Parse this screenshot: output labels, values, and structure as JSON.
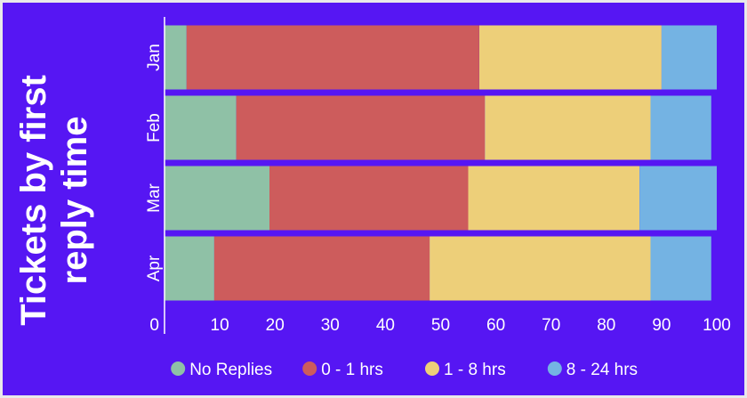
{
  "chart_data": {
    "type": "bar",
    "orientation": "horizontal",
    "stacked": true,
    "title_lines": [
      "Tickets by first",
      "reply time"
    ],
    "categories": [
      "Jan",
      "Feb",
      "Mar",
      "Apr"
    ],
    "series": [
      {
        "name": "No Replies",
        "color": "#8fc1a6",
        "values": [
          4,
          13,
          19,
          9
        ]
      },
      {
        "name": "0 - 1 hrs",
        "color": "#cd5c5c",
        "values": [
          53,
          45,
          36,
          39
        ]
      },
      {
        "name": "1 - 8 hrs",
        "color": "#edcf79",
        "values": [
          33,
          30,
          31,
          40
        ]
      },
      {
        "name": "8 - 24 hrs",
        "color": "#74b3e3",
        "values": [
          10,
          11,
          14,
          11
        ]
      }
    ],
    "xlim": [
      0,
      100
    ],
    "xticks": [
      "0",
      "10",
      "20",
      "30",
      "40",
      "50",
      "60",
      "70",
      "80",
      "90",
      "100"
    ],
    "grid": false,
    "legend_position": "bottom"
  },
  "colors": {
    "background": "#5616f3",
    "text": "#ffffff"
  }
}
